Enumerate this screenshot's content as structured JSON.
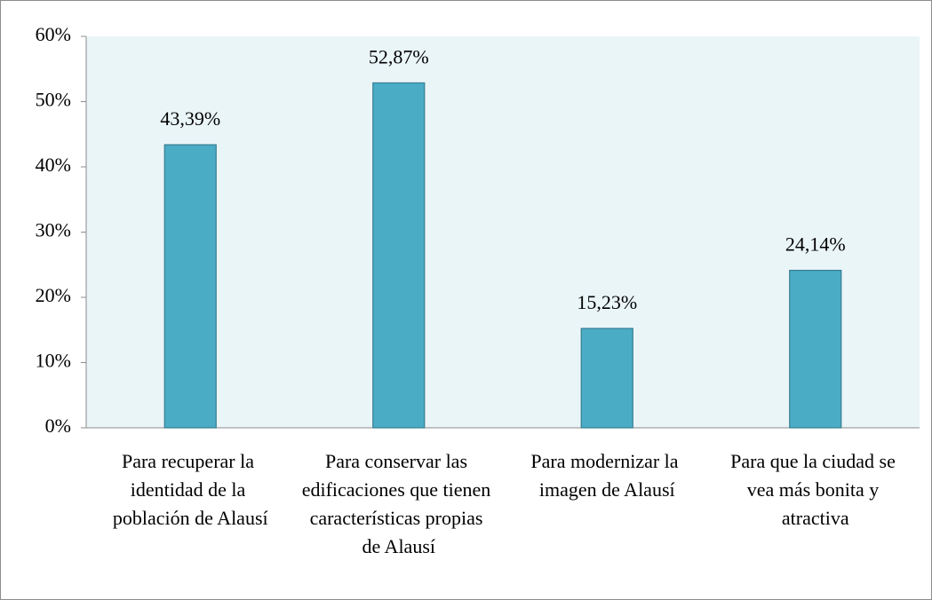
{
  "chart_data": {
    "type": "bar",
    "categories": [
      "Para recuperar la identidad de la población de Alausí",
      "Para conservar las edificaciones que tienen características propias de Alausí",
      "Para modernizar la imagen de Alausí",
      "Para que la ciudad se vea más bonita y atractiva"
    ],
    "values": [
      43.39,
      52.87,
      15.23,
      24.14
    ],
    "value_labels": [
      "43,39%",
      "52,87%",
      "15,23%",
      "24,14%"
    ],
    "color": "#4bacc6",
    "ylim": [
      0,
      60
    ],
    "yticks": [
      {
        "value": 0,
        "label": "0%"
      },
      {
        "value": 10,
        "label": "10%"
      },
      {
        "value": 20,
        "label": "20%"
      },
      {
        "value": 30,
        "label": "30%"
      },
      {
        "value": 40,
        "label": "40%"
      },
      {
        "value": 50,
        "label": "50%"
      },
      {
        "value": 60,
        "label": "60%"
      }
    ],
    "grid": false
  }
}
